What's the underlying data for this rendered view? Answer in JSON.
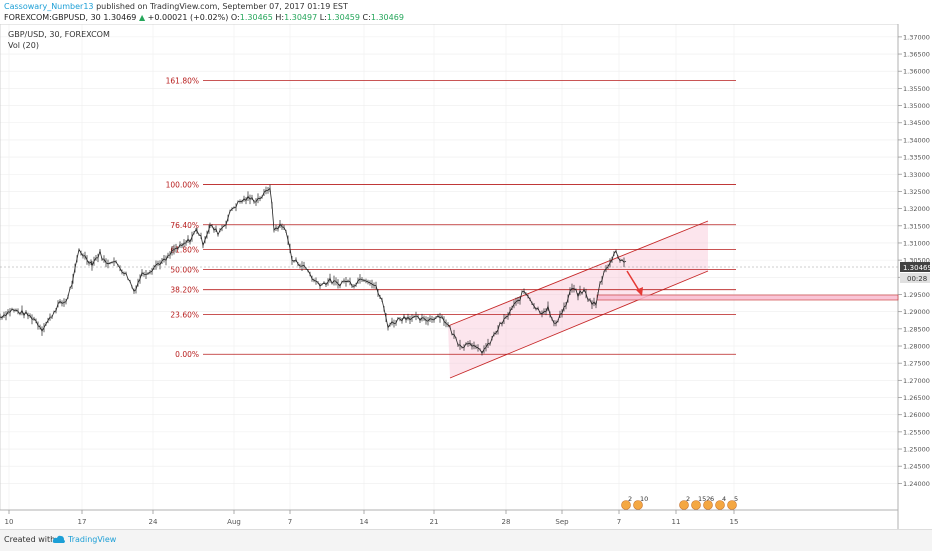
{
  "header": {
    "author": "Cassowary_Number13",
    "published": "published on TradingView.com, September 07, 2017 01:19 EST",
    "symbol": "FOREXCOM:GBPUSD, 30",
    "last": "1.30469",
    "change": "+0.00021 (+0.02%)",
    "ohlc": [
      {
        "k": "O:",
        "v": "1.30465"
      },
      {
        "k": "H:",
        "v": "1.30497"
      },
      {
        "k": "L:",
        "v": "1.30459"
      },
      {
        "k": "C:",
        "v": "1.30469"
      }
    ]
  },
  "legend": {
    "series_title": "GBP/USD, 30, FOREXCOM",
    "indicator": "Vol (20)"
  },
  "chart_data": {
    "type": "line",
    "y_range": [
      1.234,
      1.372
    ],
    "y_ticks": [
      "1.37000",
      "1.36500",
      "1.36000",
      "1.35500",
      "1.35000",
      "1.34500",
      "1.34000",
      "1.33500",
      "1.33000",
      "1.32500",
      "1.32000",
      "1.31500",
      "1.31000",
      "1.30500",
      "1.30000",
      "1.29500",
      "1.29000",
      "1.28500",
      "1.28000",
      "1.27500",
      "1.27000",
      "1.26500",
      "1.26000",
      "1.25500",
      "1.25000",
      "1.24500",
      "1.24000"
    ],
    "x_ticks": [
      "10",
      "17",
      "24",
      "Aug",
      "7",
      "14",
      "21",
      "28",
      "Sep",
      "7",
      "11",
      "15"
    ],
    "current_price": "1.30469",
    "countdown": "00:28",
    "fib_levels": [
      {
        "label": "161.80%",
        "price": 1.3573
      },
      {
        "label": "100.00%",
        "price": 1.327
      },
      {
        "label": "76.40%",
        "price": 1.3153
      },
      {
        "label": "61.80%",
        "price": 1.3081
      },
      {
        "label": "50.00%",
        "price": 1.3023
      },
      {
        "label": "38.20%",
        "price": 1.2964
      },
      {
        "label": "23.60%",
        "price": 1.2892
      },
      {
        "label": "0.00%",
        "price": 1.2776
      }
    ],
    "price_series": [
      [
        0,
        1.2885
      ],
      [
        12,
        1.2905
      ],
      [
        24,
        1.2895
      ],
      [
        34,
        1.288
      ],
      [
        42,
        1.285
      ],
      [
        50,
        1.288
      ],
      [
        58,
        1.292
      ],
      [
        66,
        1.293
      ],
      [
        73,
        1.299
      ],
      [
        79,
        1.308
      ],
      [
        85,
        1.306
      ],
      [
        92,
        1.304
      ],
      [
        100,
        1.307
      ],
      [
        106,
        1.304
      ],
      [
        112,
        1.305
      ],
      [
        120,
        1.303
      ],
      [
        128,
        1.3
      ],
      [
        134,
        1.296
      ],
      [
        142,
        1.301
      ],
      [
        150,
        1.302
      ],
      [
        158,
        1.304
      ],
      [
        166,
        1.305
      ],
      [
        174,
        1.308
      ],
      [
        182,
        1.309
      ],
      [
        190,
        1.311
      ],
      [
        197,
        1.314
      ],
      [
        203,
        1.31
      ],
      [
        210,
        1.315
      ],
      [
        218,
        1.313
      ],
      [
        226,
        1.316
      ],
      [
        232,
        1.32
      ],
      [
        240,
        1.322
      ],
      [
        248,
        1.323
      ],
      [
        256,
        1.3225
      ],
      [
        264,
        1.324
      ],
      [
        270,
        1.3265
      ],
      [
        274,
        1.314
      ],
      [
        280,
        1.315
      ],
      [
        286,
        1.314
      ],
      [
        292,
        1.305
      ],
      [
        300,
        1.304
      ],
      [
        308,
        1.302
      ],
      [
        314,
        1.299
      ],
      [
        322,
        1.298
      ],
      [
        330,
        1.299
      ],
      [
        338,
        1.298
      ],
      [
        346,
        1.299
      ],
      [
        354,
        1.298
      ],
      [
        362,
        1.3
      ],
      [
        370,
        1.299
      ],
      [
        376,
        1.297
      ],
      [
        382,
        1.293
      ],
      [
        388,
        1.286
      ],
      [
        394,
        1.287
      ],
      [
        400,
        1.288
      ],
      [
        408,
        1.2885
      ],
      [
        416,
        1.288
      ],
      [
        424,
        1.2875
      ],
      [
        432,
        1.288
      ],
      [
        440,
        1.289
      ],
      [
        446,
        1.287
      ],
      [
        452,
        1.284
      ],
      [
        458,
        1.281
      ],
      [
        464,
        1.28
      ],
      [
        470,
        1.2815
      ],
      [
        476,
        1.279
      ],
      [
        482,
        1.2785
      ],
      [
        488,
        1.28
      ],
      [
        494,
        1.283
      ],
      [
        500,
        1.286
      ],
      [
        506,
        1.288
      ],
      [
        512,
        1.291
      ],
      [
        518,
        1.293
      ],
      [
        524,
        1.296
      ],
      [
        530,
        1.294
      ],
      [
        536,
        1.291
      ],
      [
        542,
        1.29
      ],
      [
        548,
        1.291
      ],
      [
        554,
        1.286
      ],
      [
        560,
        1.289
      ],
      [
        566,
        1.292
      ],
      [
        572,
        1.297
      ],
      [
        578,
        1.295
      ],
      [
        584,
        1.296
      ],
      [
        590,
        1.293
      ],
      [
        596,
        1.292
      ],
      [
        600,
        1.298
      ],
      [
        606,
        1.303
      ],
      [
        612,
        1.305
      ],
      [
        616,
        1.308
      ],
      [
        620,
        1.305
      ],
      [
        626,
        1.3047
      ]
    ],
    "volume_markers": [
      "2",
      "10",
      "2",
      "152",
      "6",
      "4",
      "5"
    ]
  },
  "footer": {
    "created_with": "Created with",
    "brand": "TradingView"
  },
  "colors": {
    "fib": "#b71c1c",
    "channel": "#c62828",
    "fill": "#f8bbd0",
    "candle": "#222222",
    "arrow": "#e53935",
    "grid": "#eeeeee"
  }
}
